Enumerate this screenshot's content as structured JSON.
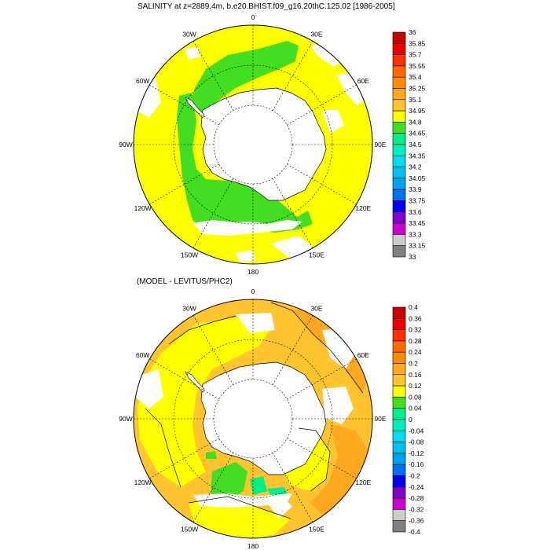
{
  "panels": [
    {
      "title": "SALINITY at z=2889.4m, b.e20.BHIST.f09_g16.20thC.125.02 [1986-2005]",
      "lon_labels": [
        "0",
        "30E",
        "60E",
        "90E",
        "120E",
        "150E",
        "180",
        "150W",
        "120W",
        "90W",
        "60W",
        "30W"
      ],
      "colorbar": {
        "labels": [
          "36",
          "35.85",
          "35.7",
          "35.55",
          "35.4",
          "35.25",
          "35.1",
          "34.95",
          "34.8",
          "34.65",
          "34.5",
          "34.35",
          "34.2",
          "34.05",
          "33.9",
          "33.75",
          "33.6",
          "33.45",
          "33.3",
          "33.15",
          "33"
        ],
        "colors": [
          "#c80000",
          "#ee0000",
          "#ff3000",
          "#ff6a00",
          "#ff8c00",
          "#ffa820",
          "#ffc430",
          "#ffff00",
          "#44dd22",
          "#00ee88",
          "#00eebb",
          "#00ddee",
          "#00c0ee",
          "#00a0ee",
          "#0070ee",
          "#0000ee",
          "#8000cc",
          "#cc00cc",
          "#cccccc",
          "#808080"
        ]
      }
    },
    {
      "title": "(MODEL - LEVITUS/PHC2)",
      "lon_labels": [
        "0",
        "30E",
        "60E",
        "90E",
        "120E",
        "150E",
        "180",
        "150W",
        "120W",
        "90W",
        "60W",
        "30W"
      ],
      "colorbar": {
        "labels": [
          "0.4",
          "0.36",
          "0.32",
          "0.28",
          "0.24",
          "0.2",
          "0.16",
          "0.12",
          "0.08",
          "0.04",
          "0",
          "-0.04",
          "-0.08",
          "-0.12",
          "-0.16",
          "-0.2",
          "-0.24",
          "-0.28",
          "-0.32",
          "-0.36",
          "-0.4"
        ],
        "colors": [
          "#c80000",
          "#ee0000",
          "#ff3000",
          "#ff6a00",
          "#ff8c00",
          "#ffa820",
          "#ffc430",
          "#ffff00",
          "#44dd22",
          "#00ee88",
          "#00eebb",
          "#00ddee",
          "#00c0ee",
          "#00a0ee",
          "#0070ee",
          "#0000ee",
          "#8000cc",
          "#cc00cc",
          "#cccccc",
          "#808080"
        ]
      }
    }
  ]
}
